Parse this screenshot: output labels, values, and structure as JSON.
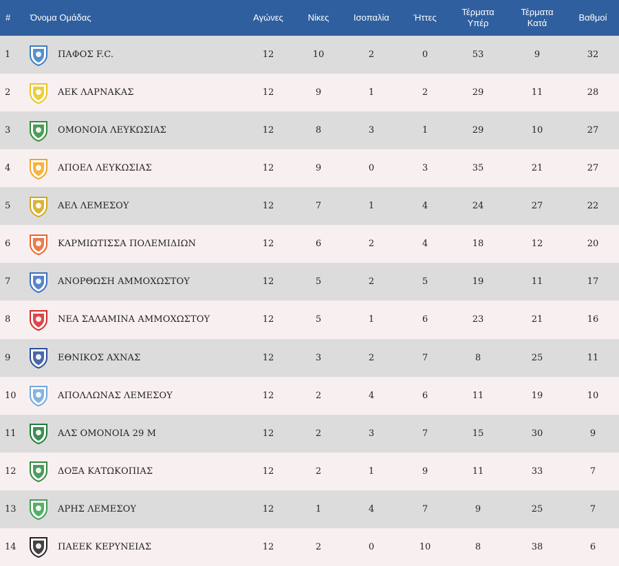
{
  "headers": {
    "pos": "#",
    "team": "Όνομα Ομάδας",
    "played": "Αγώνες",
    "wins": "Νίκες",
    "draws": "Ισοπαλία",
    "losses": "Ήττες",
    "gf_line1": "Τέρματα",
    "gf_line2": "Υπέρ",
    "ga_line1": "Τέρματα",
    "ga_line2": "Κατά",
    "points": "Βαθμοί"
  },
  "rows": [
    {
      "pos": "1",
      "team": "ΠΑΦΟΣ F.C.",
      "played": "12",
      "wins": "10",
      "draws": "2",
      "losses": "0",
      "gf": "53",
      "ga": "9",
      "points": "32",
      "logo": "pafos-crest-icon",
      "color": "#3a7cc2"
    },
    {
      "pos": "2",
      "team": "ΑΕΚ ΛΑΡΝΑΚΑΣ",
      "played": "12",
      "wins": "9",
      "draws": "1",
      "losses": "2",
      "gf": "29",
      "ga": "11",
      "points": "28",
      "logo": "aek-crest-icon",
      "color": "#e8c51b"
    },
    {
      "pos": "3",
      "team": "ΟΜΟΝΟΙΑ ΛΕΥΚΩΣΙΑΣ",
      "played": "12",
      "wins": "8",
      "draws": "3",
      "losses": "1",
      "gf": "29",
      "ga": "10",
      "points": "27",
      "logo": "omonoia-crest-icon",
      "color": "#2e8b3a"
    },
    {
      "pos": "4",
      "team": "ΑΠΟΕΛ ΛΕΥΚΩΣΙΑΣ",
      "played": "12",
      "wins": "9",
      "draws": "0",
      "losses": "3",
      "gf": "35",
      "ga": "21",
      "points": "27",
      "logo": "apoel-crest-icon",
      "color": "#f2a623"
    },
    {
      "pos": "5",
      "team": "ΑΕΛ ΛΕΜΕΣΟΥ",
      "played": "12",
      "wins": "7",
      "draws": "1",
      "losses": "4",
      "gf": "24",
      "ga": "27",
      "points": "22",
      "logo": "ael-crest-icon",
      "color": "#d4a619"
    },
    {
      "pos": "6",
      "team": "ΚΑΡΜΙΩΤΙΣΣΑ ΠΟΛΕΜΙΔΙΩΝ",
      "played": "12",
      "wins": "6",
      "draws": "2",
      "losses": "4",
      "gf": "18",
      "ga": "12",
      "points": "20",
      "logo": "karmiotissa-crest-icon",
      "color": "#e8642c"
    },
    {
      "pos": "7",
      "team": "ΑΝΟΡΘΩΣΗ ΑΜΜΟΧΩΣΤΟΥ",
      "played": "12",
      "wins": "5",
      "draws": "2",
      "losses": "5",
      "gf": "19",
      "ga": "11",
      "points": "17",
      "logo": "anorthosis-crest-icon",
      "color": "#3a6fc0"
    },
    {
      "pos": "8",
      "team": "ΝΕΑ ΣΑΛΑΜΙΝΑ ΑΜΜΟΧΩΣΤΟΥ",
      "played": "12",
      "wins": "5",
      "draws": "1",
      "losses": "6",
      "gf": "23",
      "ga": "21",
      "points": "16",
      "logo": "nea-salamina-crest-icon",
      "color": "#d8262c"
    },
    {
      "pos": "9",
      "team": "ΕΘΝΙΚΟΣ ΑΧΝΑΣ",
      "played": "12",
      "wins": "3",
      "draws": "2",
      "losses": "7",
      "gf": "8",
      "ga": "25",
      "points": "11",
      "logo": "ethnikos-crest-icon",
      "color": "#2a4c9a"
    },
    {
      "pos": "10",
      "team": "ΑΠΟΛΛΩΝΑΣ ΛΕΜΕΣΟΥ",
      "played": "12",
      "wins": "2",
      "draws": "4",
      "losses": "6",
      "gf": "11",
      "ga": "19",
      "points": "10",
      "logo": "apollon-crest-icon",
      "color": "#6fa8dc"
    },
    {
      "pos": "11",
      "team": "ΑΛΣ ΟΜΟΝΟΙΑ 29 Μ",
      "played": "12",
      "wins": "2",
      "draws": "3",
      "losses": "7",
      "gf": "15",
      "ga": "30",
      "points": "9",
      "logo": "omonoia-29m-crest-icon",
      "color": "#1f7a3a"
    },
    {
      "pos": "12",
      "team": "ΔΟΞΑ ΚΑΤΩΚΟΠΙΑΣ",
      "played": "12",
      "wins": "2",
      "draws": "1",
      "losses": "9",
      "gf": "11",
      "ga": "33",
      "points": "7",
      "logo": "doxa-crest-icon",
      "color": "#2f8a3e"
    },
    {
      "pos": "13",
      "team": "ΑΡΗΣ ΛΕΜΕΣΟΥ",
      "played": "12",
      "wins": "1",
      "draws": "4",
      "losses": "7",
      "gf": "9",
      "ga": "25",
      "points": "7",
      "logo": "aris-crest-icon",
      "color": "#3aa050"
    },
    {
      "pos": "14",
      "team": "ΠΑΕΕΚ ΚΕΡΥΝΕΙΑΣ",
      "played": "12",
      "wins": "2",
      "draws": "0",
      "losses": "10",
      "gf": "8",
      "ga": "38",
      "points": "6",
      "logo": "paeek-crest-icon",
      "color": "#222222"
    }
  ]
}
